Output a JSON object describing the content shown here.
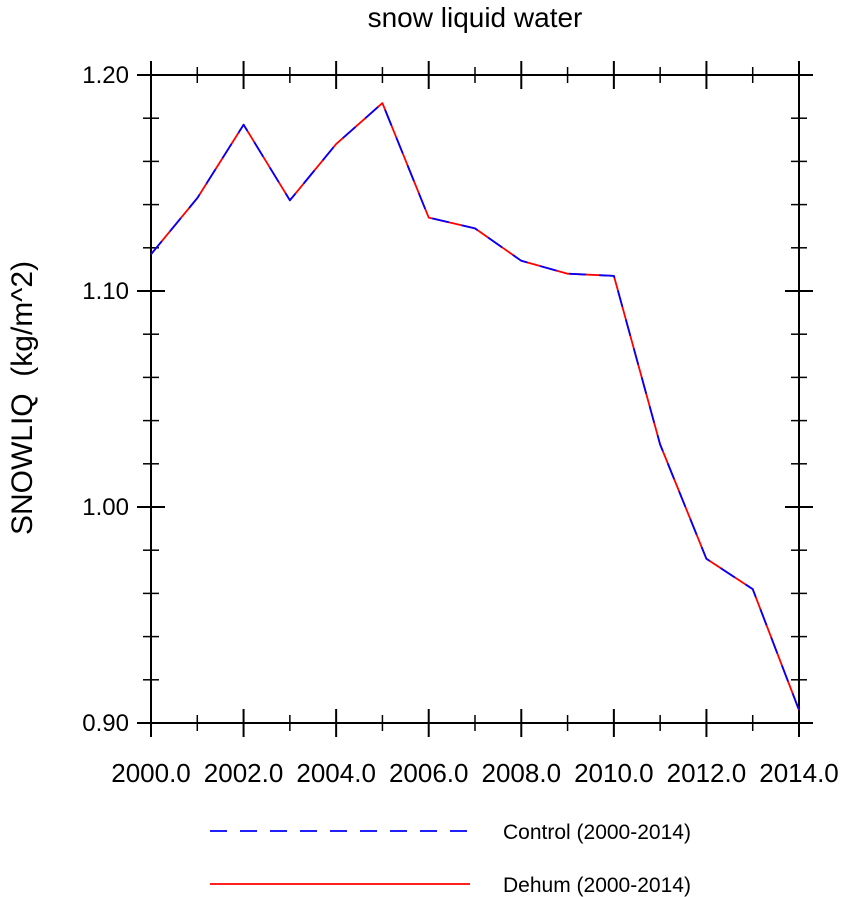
{
  "chart_data": {
    "type": "line",
    "title": "snow liquid water",
    "xlabel": "",
    "ylabel": "SNOWLIQ  (kg/m^2)",
    "xlim": [
      2000,
      2014
    ],
    "ylim": [
      0.9,
      1.2
    ],
    "x_ticks": [
      2000,
      2002,
      2004,
      2006,
      2008,
      2010,
      2012,
      2014
    ],
    "x_tick_labels": [
      "2000.0",
      "2002.0",
      "2004.0",
      "2006.0",
      "2008.0",
      "2010.0",
      "2012.0",
      "2014.0"
    ],
    "y_ticks": [
      0.9,
      1.0,
      1.1,
      1.2
    ],
    "y_tick_labels": [
      "0.90",
      "1.00",
      "1.10",
      "1.20"
    ],
    "y_minor_step": 0.02,
    "x_minor_step": 1,
    "grid": false,
    "legend_position": "bottom",
    "x": [
      2000,
      2001,
      2002,
      2003,
      2004,
      2005,
      2006,
      2007,
      2008,
      2009,
      2010,
      2011,
      2012,
      2013,
      2014
    ],
    "series": [
      {
        "name": "Control (2000-2014)",
        "color": "#0000ff",
        "style": "dashed",
        "values": [
          1.117,
          1.143,
          1.177,
          1.142,
          1.168,
          1.187,
          1.134,
          1.129,
          1.114,
          1.108,
          1.107,
          1.029,
          0.976,
          0.962,
          0.906
        ]
      },
      {
        "name": "Dehum (2000-2014)",
        "color": "#ff0000",
        "style": "solid",
        "values": [
          1.117,
          1.143,
          1.177,
          1.142,
          1.168,
          1.187,
          1.134,
          1.129,
          1.114,
          1.108,
          1.107,
          1.029,
          0.976,
          0.962,
          0.906
        ]
      }
    ]
  }
}
